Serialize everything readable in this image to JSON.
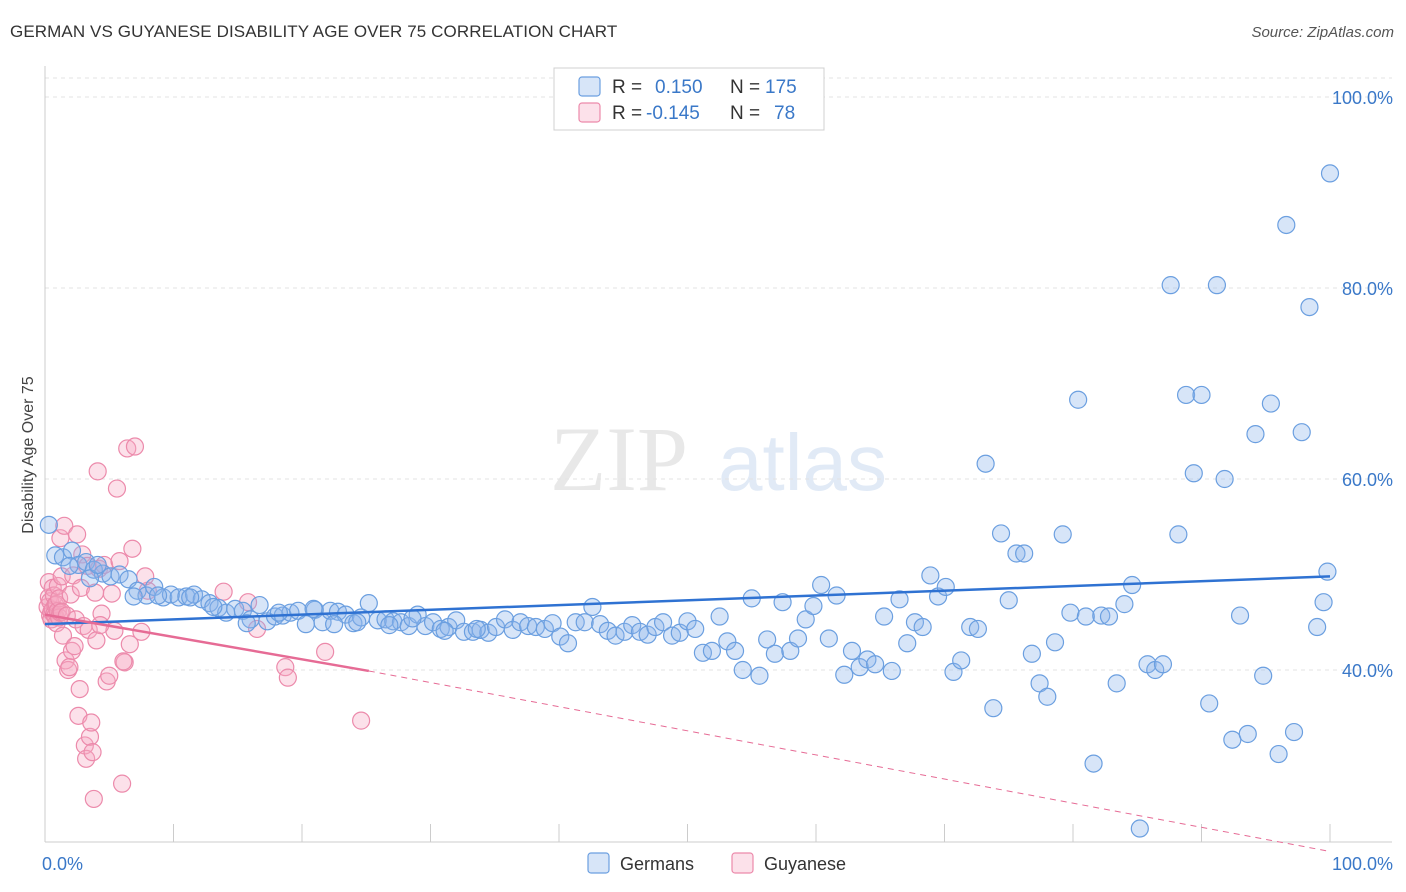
{
  "title": "GERMAN VS GUYANESE DISABILITY AGE OVER 75 CORRELATION CHART",
  "source": "Source: ZipAtlas.com",
  "watermark": {
    "zip": "ZIP",
    "atlas": "atlas"
  },
  "legend": {
    "rows": [
      {
        "r_label": "R =",
        "r_value": "0.150",
        "n_label": "N =",
        "n_value": "175",
        "color": "#a9c8ef"
      },
      {
        "r_label": "R =",
        "r_value": "-0.145",
        "n_label": "N =",
        "n_value": "78",
        "color": "#f5b8cb"
      }
    ]
  },
  "bottom_legend": [
    {
      "label": "Germans",
      "color": "#a9c8ef"
    },
    {
      "label": "Guyanese",
      "color": "#f5b8cb"
    }
  ],
  "colors": {
    "german_fill": "rgba(140,180,235,0.35)",
    "german_stroke": "#6b9fe0",
    "guyanese_fill": "rgba(245,170,195,0.35)",
    "guyanese_stroke": "#ec8aab",
    "german_line": "#2f72d2",
    "guyanese_line": "#e66b95",
    "grid": "#e3e3e3",
    "tick_text": "#3a78c8"
  },
  "chart_data": {
    "type": "scatter",
    "title": "GERMAN VS GUYANESE DISABILITY AGE OVER 75 CORRELATION CHART",
    "xlabel": "",
    "ylabel": "Disability Age Over 75",
    "xlim": [
      0,
      100
    ],
    "ylim": [
      20,
      102
    ],
    "x_tick_labels": [
      "0.0%",
      "100.0%"
    ],
    "y_ticks": [
      40,
      60,
      80,
      100
    ],
    "y_tick_labels": [
      "40.0%",
      "60.0%",
      "80.0%",
      "100.0%"
    ],
    "grid": true,
    "legend_position": "top-center",
    "series": [
      {
        "name": "Germans",
        "r": 0.15,
        "n": 175,
        "trend": {
          "x": [
            0,
            100
          ],
          "y": [
            44.8,
            49.8
          ],
          "dashed_from": null
        },
        "points": [
          [
            0.3,
            55.2
          ],
          [
            0.8,
            52.0
          ],
          [
            1.4,
            51.8
          ],
          [
            2.1,
            52.5
          ],
          [
            2.6,
            51.0
          ],
          [
            3.2,
            51.3
          ],
          [
            3.8,
            50.5
          ],
          [
            4.5,
            50.1
          ],
          [
            5.1,
            49.8
          ],
          [
            5.8,
            50.0
          ],
          [
            6.5,
            49.5
          ],
          [
            7.2,
            48.3
          ],
          [
            7.9,
            47.8
          ],
          [
            8.5,
            48.7
          ],
          [
            9.2,
            47.6
          ],
          [
            9.8,
            47.9
          ],
          [
            10.4,
            47.6
          ],
          [
            11.0,
            47.7
          ],
          [
            11.6,
            47.9
          ],
          [
            12.2,
            47.4
          ],
          [
            12.8,
            47.0
          ],
          [
            13.5,
            46.5
          ],
          [
            14.1,
            46.0
          ],
          [
            14.8,
            46.4
          ],
          [
            15.4,
            46.2
          ],
          [
            16.0,
            45.3
          ],
          [
            16.7,
            46.8
          ],
          [
            17.3,
            45.1
          ],
          [
            17.9,
            45.6
          ],
          [
            18.5,
            45.7
          ],
          [
            19.1,
            46.0
          ],
          [
            19.7,
            46.2
          ],
          [
            20.3,
            44.8
          ],
          [
            21.0,
            46.3
          ],
          [
            21.6,
            45.0
          ],
          [
            22.2,
            46.2
          ],
          [
            22.8,
            46.1
          ],
          [
            23.4,
            45.8
          ],
          [
            24.0,
            44.9
          ],
          [
            24.6,
            45.5
          ],
          [
            25.2,
            47.0
          ],
          [
            25.9,
            45.2
          ],
          [
            26.5,
            45.3
          ],
          [
            27.1,
            45.1
          ],
          [
            27.7,
            45.0
          ],
          [
            28.3,
            44.6
          ],
          [
            29.0,
            45.8
          ],
          [
            29.6,
            44.6
          ],
          [
            30.2,
            45.0
          ],
          [
            30.8,
            44.3
          ],
          [
            31.4,
            44.5
          ],
          [
            32.0,
            45.2
          ],
          [
            32.6,
            44.0
          ],
          [
            33.3,
            44.0
          ],
          [
            33.9,
            44.2
          ],
          [
            34.5,
            43.9
          ],
          [
            35.1,
            44.5
          ],
          [
            35.8,
            45.3
          ],
          [
            36.4,
            44.2
          ],
          [
            37.0,
            45.0
          ],
          [
            37.6,
            44.6
          ],
          [
            38.2,
            44.5
          ],
          [
            38.9,
            44.3
          ],
          [
            39.5,
            44.9
          ],
          [
            40.1,
            43.5
          ],
          [
            40.7,
            42.8
          ],
          [
            41.3,
            45.0
          ],
          [
            42.0,
            45.0
          ],
          [
            42.6,
            46.6
          ],
          [
            43.2,
            44.8
          ],
          [
            43.8,
            44.1
          ],
          [
            44.4,
            43.6
          ],
          [
            45.1,
            44.0
          ],
          [
            45.7,
            44.7
          ],
          [
            46.3,
            44.0
          ],
          [
            46.9,
            43.7
          ],
          [
            47.5,
            44.5
          ],
          [
            48.1,
            45.0
          ],
          [
            48.8,
            43.6
          ],
          [
            49.4,
            43.9
          ],
          [
            50.0,
            45.1
          ],
          [
            50.6,
            44.3
          ],
          [
            51.2,
            41.8
          ],
          [
            51.9,
            42.0
          ],
          [
            52.5,
            45.6
          ],
          [
            53.1,
            43.0
          ],
          [
            53.7,
            42.0
          ],
          [
            54.3,
            40.0
          ],
          [
            55.0,
            47.5
          ],
          [
            55.6,
            39.4
          ],
          [
            56.2,
            43.2
          ],
          [
            56.8,
            41.7
          ],
          [
            57.4,
            47.1
          ],
          [
            58.0,
            42.0
          ],
          [
            58.6,
            43.3
          ],
          [
            59.2,
            45.3
          ],
          [
            59.8,
            46.7
          ],
          [
            60.4,
            48.9
          ],
          [
            61.0,
            43.3
          ],
          [
            61.6,
            47.8
          ],
          [
            62.2,
            39.5
          ],
          [
            62.8,
            42.0
          ],
          [
            63.4,
            40.3
          ],
          [
            64.0,
            41.1
          ],
          [
            64.6,
            40.6
          ],
          [
            65.3,
            45.6
          ],
          [
            65.9,
            39.9
          ],
          [
            66.5,
            47.4
          ],
          [
            67.1,
            42.8
          ],
          [
            67.7,
            45.0
          ],
          [
            68.3,
            44.5
          ],
          [
            68.9,
            49.9
          ],
          [
            69.5,
            47.7
          ],
          [
            70.1,
            48.7
          ],
          [
            70.7,
            39.8
          ],
          [
            71.3,
            41.0
          ],
          [
            72.0,
            44.5
          ],
          [
            72.6,
            44.3
          ],
          [
            73.2,
            61.6
          ],
          [
            73.8,
            36.0
          ],
          [
            74.4,
            54.3
          ],
          [
            75.0,
            47.3
          ],
          [
            75.6,
            52.2
          ],
          [
            76.2,
            52.2
          ],
          [
            76.8,
            41.7
          ],
          [
            77.4,
            38.6
          ],
          [
            78.0,
            37.2
          ],
          [
            78.6,
            42.9
          ],
          [
            79.2,
            54.2
          ],
          [
            79.8,
            46.0
          ],
          [
            80.4,
            68.3
          ],
          [
            81.0,
            45.6
          ],
          [
            81.6,
            30.2
          ],
          [
            82.2,
            45.7
          ],
          [
            82.8,
            45.6
          ],
          [
            83.4,
            38.6
          ],
          [
            84.0,
            46.9
          ],
          [
            84.6,
            48.9
          ],
          [
            85.2,
            23.4
          ],
          [
            85.8,
            40.6
          ],
          [
            86.4,
            40.0
          ],
          [
            87.0,
            40.6
          ],
          [
            87.6,
            80.3
          ],
          [
            88.2,
            54.2
          ],
          [
            88.8,
            68.8
          ],
          [
            89.4,
            60.6
          ],
          [
            90.0,
            68.8
          ],
          [
            90.6,
            36.5
          ],
          [
            91.2,
            80.3
          ],
          [
            91.8,
            60.0
          ],
          [
            92.4,
            32.7
          ],
          [
            93.0,
            45.7
          ],
          [
            93.6,
            33.3
          ],
          [
            94.2,
            64.7
          ],
          [
            94.8,
            39.4
          ],
          [
            95.4,
            67.9
          ],
          [
            96.0,
            31.2
          ],
          [
            96.6,
            86.6
          ],
          [
            97.2,
            33.5
          ],
          [
            97.8,
            64.9
          ],
          [
            98.4,
            78.0
          ],
          [
            99.0,
            44.5
          ],
          [
            99.5,
            47.1
          ],
          [
            99.8,
            50.3
          ],
          [
            100.0,
            92.0
          ],
          [
            1.9,
            50.9
          ],
          [
            3.5,
            49.6
          ],
          [
            4.1,
            51.0
          ],
          [
            6.9,
            47.7
          ],
          [
            8.8,
            47.8
          ],
          [
            11.3,
            47.6
          ],
          [
            13.1,
            46.6
          ],
          [
            15.7,
            44.9
          ],
          [
            18.2,
            46.0
          ],
          [
            20.9,
            46.4
          ],
          [
            22.5,
            44.8
          ],
          [
            24.3,
            45.0
          ],
          [
            26.8,
            44.7
          ],
          [
            28.6,
            45.4
          ],
          [
            31.1,
            44.1
          ],
          [
            33.6,
            44.3
          ]
        ]
      },
      {
        "name": "Guyanese",
        "r": -0.145,
        "n": 78,
        "trend": {
          "x": [
            0,
            25.2,
            100
          ],
          "y": [
            45.8,
            39.9,
            21.0
          ],
          "dashed_from": 25.2
        },
        "points": [
          [
            0.2,
            46.6
          ],
          [
            0.3,
            47.6
          ],
          [
            0.3,
            49.2
          ],
          [
            0.4,
            45.7
          ],
          [
            0.4,
            47.2
          ],
          [
            0.5,
            46.1
          ],
          [
            0.5,
            45.3
          ],
          [
            0.6,
            48.6
          ],
          [
            0.6,
            46.3
          ],
          [
            0.7,
            47.8
          ],
          [
            0.7,
            45.8
          ],
          [
            0.8,
            46.8
          ],
          [
            0.8,
            45.6
          ],
          [
            0.9,
            46.9
          ],
          [
            0.9,
            44.9
          ],
          [
            1.0,
            48.8
          ],
          [
            1.0,
            46.2
          ],
          [
            1.1,
            45.5
          ],
          [
            1.1,
            47.5
          ],
          [
            1.2,
            46.0
          ],
          [
            1.2,
            53.8
          ],
          [
            1.3,
            46.1
          ],
          [
            1.3,
            49.8
          ],
          [
            1.4,
            43.6
          ],
          [
            1.5,
            55.1
          ],
          [
            1.6,
            41.0
          ],
          [
            1.7,
            45.7
          ],
          [
            1.8,
            40.0
          ],
          [
            1.9,
            40.3
          ],
          [
            2.0,
            47.9
          ],
          [
            2.1,
            42.0
          ],
          [
            2.2,
            49.9
          ],
          [
            2.3,
            42.5
          ],
          [
            2.4,
            45.3
          ],
          [
            2.5,
            54.2
          ],
          [
            2.6,
            35.2
          ],
          [
            2.7,
            38.0
          ],
          [
            2.8,
            48.6
          ],
          [
            2.9,
            52.1
          ],
          [
            3.0,
            44.6
          ],
          [
            3.1,
            32.1
          ],
          [
            3.2,
            30.7
          ],
          [
            3.3,
            50.9
          ],
          [
            3.4,
            44.2
          ],
          [
            3.5,
            33.0
          ],
          [
            3.6,
            34.5
          ],
          [
            3.7,
            31.4
          ],
          [
            3.8,
            26.5
          ],
          [
            4.0,
            43.1
          ],
          [
            4.2,
            50.6
          ],
          [
            4.4,
            45.9
          ],
          [
            4.6,
            51.0
          ],
          [
            4.8,
            38.8
          ],
          [
            5.0,
            39.4
          ],
          [
            5.2,
            48.0
          ],
          [
            5.4,
            44.1
          ],
          [
            5.6,
            59.0
          ],
          [
            5.8,
            51.4
          ],
          [
            6.0,
            28.1
          ],
          [
            6.2,
            40.8
          ],
          [
            6.4,
            63.2
          ],
          [
            6.6,
            42.7
          ],
          [
            6.8,
            52.7
          ],
          [
            7.0,
            63.4
          ],
          [
            7.5,
            44.0
          ],
          [
            8.0,
            48.3
          ],
          [
            4.1,
            60.8
          ],
          [
            7.8,
            49.8
          ],
          [
            13.9,
            48.2
          ],
          [
            15.8,
            47.1
          ],
          [
            16.5,
            44.3
          ],
          [
            18.7,
            40.3
          ],
          [
            18.9,
            39.2
          ],
          [
            21.8,
            41.9
          ],
          [
            24.6,
            34.7
          ],
          [
            4.3,
            44.7
          ],
          [
            3.9,
            48.1
          ],
          [
            6.1,
            40.9
          ]
        ]
      }
    ]
  }
}
